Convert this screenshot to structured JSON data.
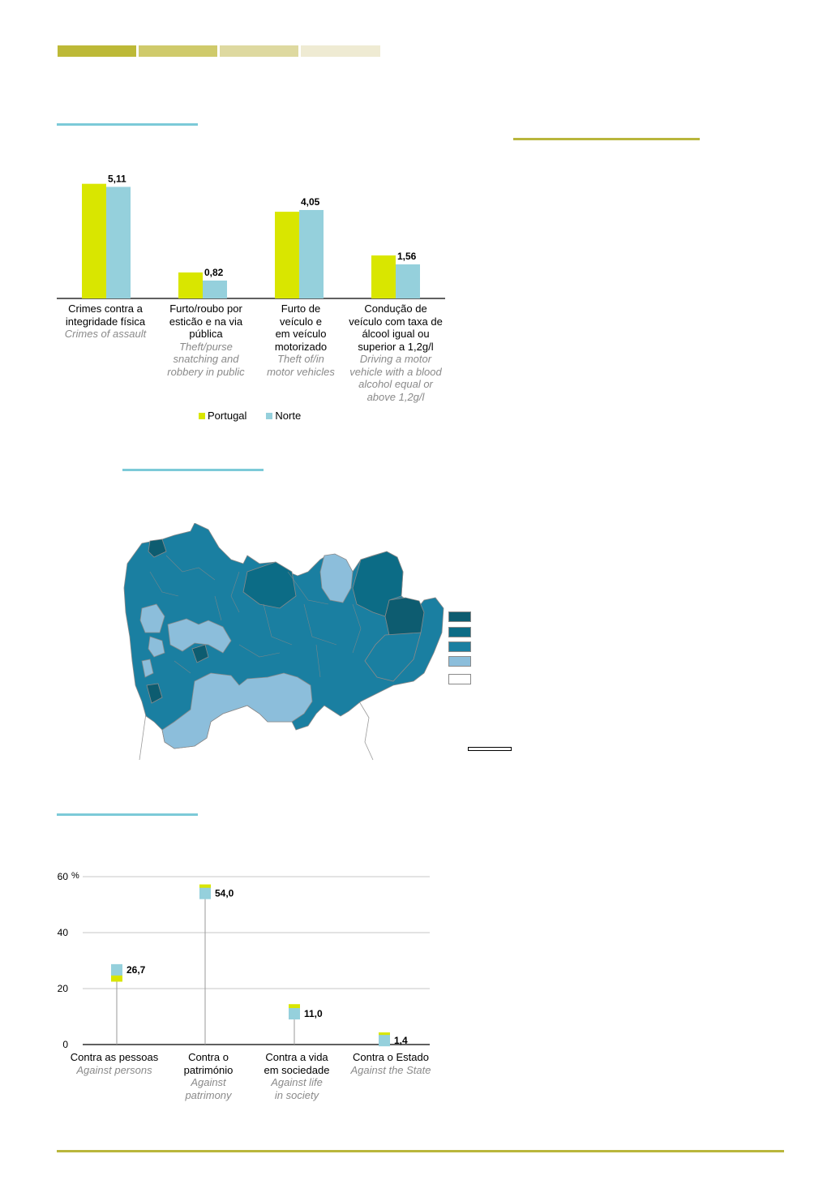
{
  "colors": {
    "portugal": "#d9e600",
    "norte": "#95d0dc",
    "header_bars": [
      "#bdb937",
      "#cfca6b",
      "#ded9a0",
      "#efebd3"
    ],
    "rule_blue": "#7ccad8",
    "rule_olive": "#b9b63c",
    "map_classes": [
      "#0d5c70",
      "#0c6c86",
      "#1a7fa1",
      "#8cbedb",
      "#ffffff"
    ]
  },
  "chart_data": [
    {
      "type": "bar",
      "categories": [
        {
          "pt": [
            "Crimes contra a",
            "integridade física"
          ],
          "en": [
            "Crimes of assault"
          ]
        },
        {
          "pt": [
            "Furto/roubo por",
            "esticão e na via",
            "pública"
          ],
          "en": [
            "Theft/purse",
            "snatching and",
            "robbery in public"
          ]
        },
        {
          "pt": [
            "Furto de",
            "veículo e",
            "em veículo",
            "motorizado"
          ],
          "en": [
            "Theft of/in",
            "motor vehicles"
          ]
        },
        {
          "pt": [
            "Condução de",
            "veículo com taxa de",
            "álcool igual ou",
            "superior a 1,2g/l"
          ],
          "en": [
            "Driving a motor",
            "vehicle with a blood",
            "alcohol equal or",
            "above 1,2g/l"
          ]
        }
      ],
      "series": [
        {
          "name": "Portugal",
          "values": [
            5.25,
            1.19,
            3.97,
            1.97
          ]
        },
        {
          "name": "Norte",
          "values": [
            5.11,
            0.82,
            4.05,
            1.56
          ]
        }
      ],
      "data_labels": [
        "5,11",
        "0,82",
        "4,05",
        "1,56"
      ],
      "ylim": [
        0,
        5.6
      ],
      "legend": "bottom"
    },
    {
      "type": "scatter",
      "categories": [
        {
          "pt": [
            "Contra as pessoas"
          ],
          "en": [
            "Against persons"
          ]
        },
        {
          "pt": [
            "Contra o",
            "património"
          ],
          "en": [
            "Against",
            "patrimony"
          ]
        },
        {
          "pt": [
            "Contra a vida",
            "em sociedade"
          ],
          "en": [
            "Against life",
            "in society"
          ]
        },
        {
          "pt": [
            "Contra o Estado"
          ],
          "en": [
            "Against the State"
          ]
        }
      ],
      "series": [
        {
          "name": "Portugal",
          "values": [
            24.5,
            55.2,
            12.4,
            2.3
          ]
        },
        {
          "name": "Norte",
          "values": [
            26.7,
            54.0,
            11.0,
            1.4
          ]
        }
      ],
      "data_labels": [
        "26,7",
        "54,0",
        "11,0",
        "1,4"
      ],
      "yticks": [
        "0",
        "20",
        "40",
        "60"
      ],
      "yunit": "%",
      "ylim": [
        0,
        60
      ],
      "grid": true
    }
  ]
}
